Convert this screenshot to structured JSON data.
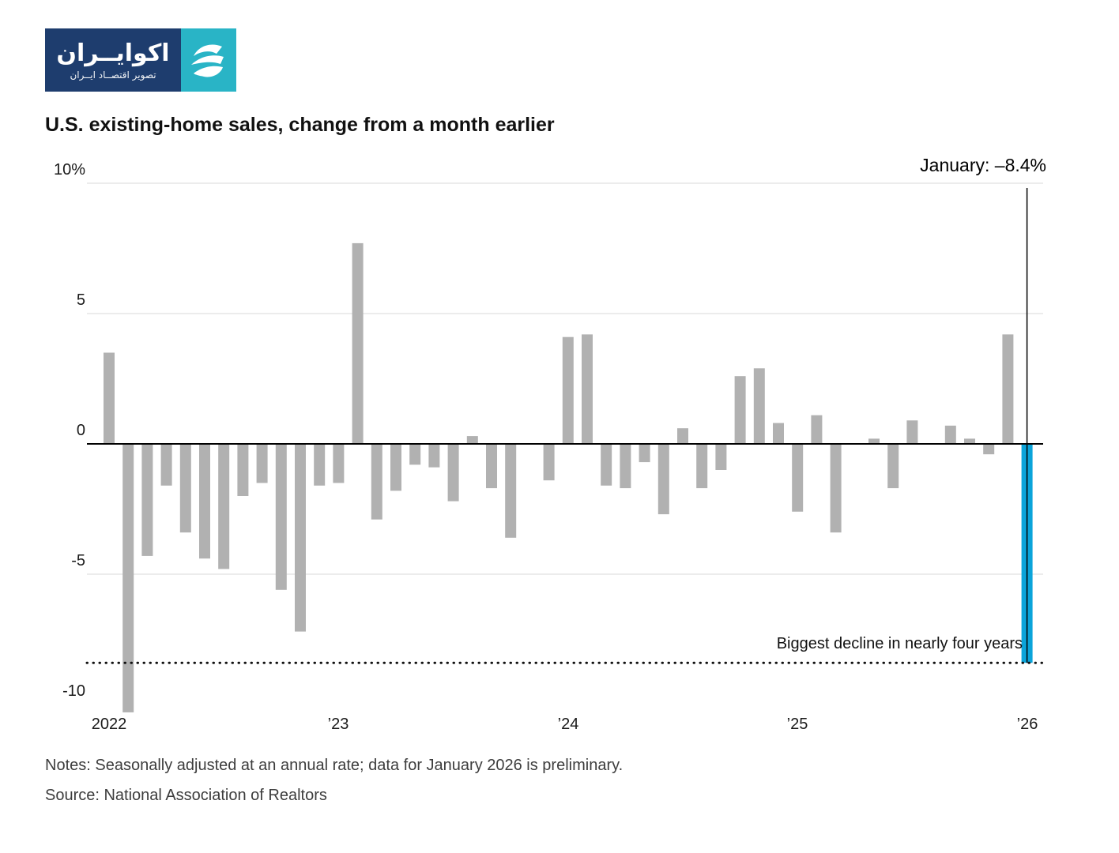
{
  "logo": {
    "brand_text": "اکوایــران",
    "brand_subtitle": "تصویر اقتصــاد ایــران",
    "navy": "#1e3d6e",
    "teal": "#29b4c6"
  },
  "title": "U.S. existing-home sales, change from a month earlier",
  "annotation": "January: –8.4%",
  "callout": "Biggest decline in nearly four years",
  "notes": "Notes: Seasonally adjusted at an annual rate; data for January 2026 is preliminary.",
  "source": "Source: National Association of Realtors",
  "chart_data": {
    "type": "bar",
    "title": "U.S. existing-home sales, change from a month earlier",
    "unit": "%",
    "ylim": [
      -10,
      10
    ],
    "grid": "horizontal",
    "bar_color": "#b1b1b1",
    "highlight_color": "#0ba4da",
    "highlight_index": 48,
    "highlight_label": "January: –8.4%",
    "reference_line_value": -8.4,
    "reference_line_label": "Biggest decline in nearly four years",
    "y_ticks": [
      {
        "value": 10,
        "label": "10%",
        "grid": true
      },
      {
        "value": 5,
        "label": "5",
        "grid": true
      },
      {
        "value": 0,
        "label": "0",
        "grid": false
      },
      {
        "value": -5,
        "label": "-5",
        "grid": true
      },
      {
        "value": -10,
        "label": "-10",
        "grid": false
      }
    ],
    "x_ticks": [
      {
        "index": 0,
        "label": "2022"
      },
      {
        "index": 12,
        "label": "’23"
      },
      {
        "index": 24,
        "label": "’24"
      },
      {
        "index": 36,
        "label": "’25"
      },
      {
        "index": 48,
        "label": "’26"
      }
    ],
    "months": [
      "2022-01",
      "2022-02",
      "2022-03",
      "2022-04",
      "2022-05",
      "2022-06",
      "2022-07",
      "2022-08",
      "2022-09",
      "2022-10",
      "2022-11",
      "2022-12",
      "2023-01",
      "2023-02",
      "2023-03",
      "2023-04",
      "2023-05",
      "2023-06",
      "2023-07",
      "2023-08",
      "2023-09",
      "2023-10",
      "2023-11",
      "2023-12",
      "2024-01",
      "2024-02",
      "2024-03",
      "2024-04",
      "2024-05",
      "2024-06",
      "2024-07",
      "2024-08",
      "2024-09",
      "2024-10",
      "2024-11",
      "2024-12",
      "2025-01",
      "2025-02",
      "2025-03",
      "2025-04",
      "2025-05",
      "2025-06",
      "2025-07",
      "2025-08",
      "2025-09",
      "2025-10",
      "2025-11",
      "2025-12",
      "2026-01"
    ],
    "values": [
      3.5,
      -10.3,
      -4.3,
      -1.6,
      -3.4,
      -4.4,
      -4.8,
      -2.0,
      -1.5,
      -5.6,
      -7.2,
      -1.6,
      -1.5,
      7.7,
      -2.9,
      -1.8,
      -0.8,
      -0.9,
      -2.2,
      0.3,
      -1.7,
      -3.6,
      0.0,
      -1.4,
      4.1,
      4.2,
      -1.6,
      -1.7,
      -0.7,
      -2.7,
      0.6,
      -1.7,
      -1.0,
      2.6,
      2.9,
      0.8,
      -2.6,
      1.1,
      -3.4,
      0.0,
      0.2,
      -1.7,
      0.9,
      0.0,
      0.7,
      0.2,
      -0.4,
      4.2,
      -8.4
    ]
  }
}
